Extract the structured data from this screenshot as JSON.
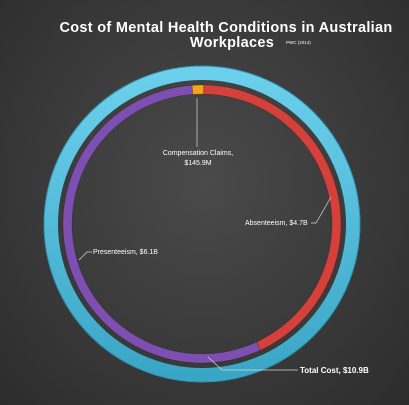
{
  "chart_data": {
    "type": "pie",
    "title": "Cost of Mental Health Conditions in Australian Workplaces",
    "subtitle": "PWC (2014)",
    "outer_ring": {
      "label": "Total Cost, $10.9B",
      "value": 10.9,
      "unit": "$B",
      "color": "#4bb8d6"
    },
    "slices": [
      {
        "name": "Compensation Claims",
        "value": 0.1459,
        "label": "Compensation Claims,\n$145.9M",
        "line1": "Compensation Claims,",
        "line2": "$145.9M",
        "color": "#f2a51a"
      },
      {
        "name": "Absenteeism",
        "value": 4.7,
        "label": "Absenteeism, $4.7B",
        "color": "#d6403a"
      },
      {
        "name": "Presenteeism",
        "value": 6.1,
        "label": "Presenteeism, $6.1B",
        "color": "#7d4fb0"
      }
    ]
  }
}
